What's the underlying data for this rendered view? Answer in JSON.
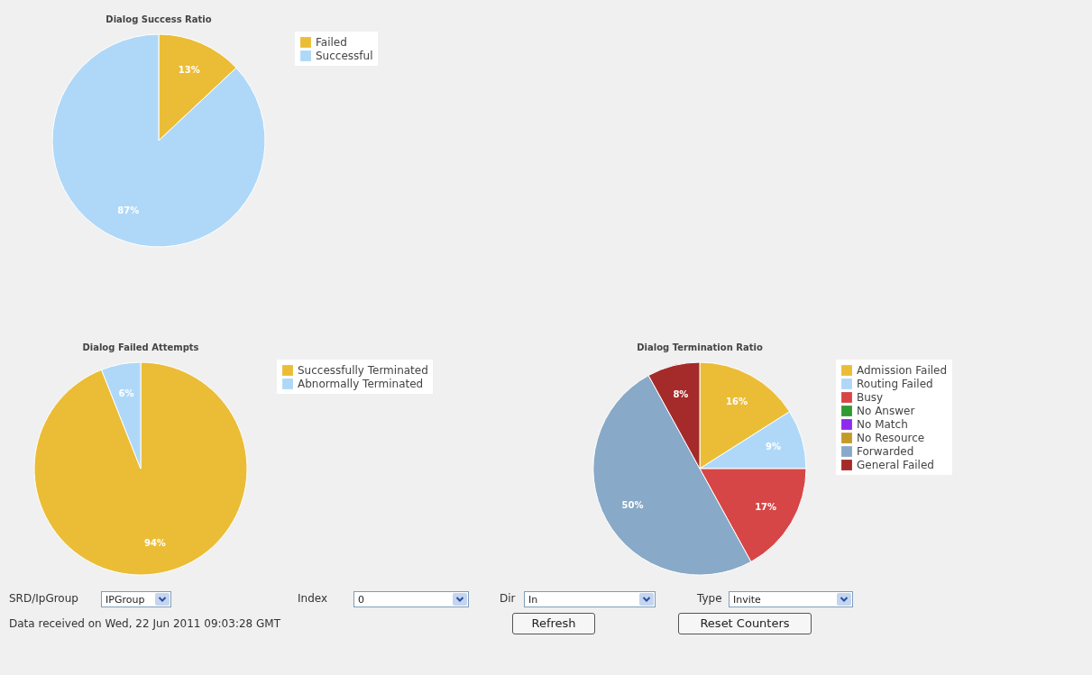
{
  "chart_data": [
    {
      "type": "pie",
      "title": "Dialog Success Ratio",
      "categories": [
        "Failed",
        "Successful"
      ],
      "values": [
        13,
        87
      ],
      "colors": [
        "#ebbd36",
        "#afd8f8"
      ],
      "value_labels": [
        "13%",
        "87%"
      ],
      "legend": "top right"
    },
    {
      "type": "pie",
      "title": "Dialog Failed Attempts",
      "categories": [
        "Successfully Terminated",
        "Abnormally Terminated"
      ],
      "values": [
        94,
        6
      ],
      "colors": [
        "#ebbd36",
        "#afd8f8"
      ],
      "value_labels": [
        "94%",
        "6%"
      ],
      "legend": "top right"
    },
    {
      "type": "pie",
      "title": "Dialog Termination Ratio",
      "categories": [
        "Admission Failed",
        "Routing Failed",
        "Busy",
        "No Answer",
        "No Match",
        "No Resource",
        "Forwarded",
        "General Failed"
      ],
      "values": [
        16,
        9,
        17,
        0,
        0,
        0,
        50,
        8
      ],
      "colors": [
        "#ebbd36",
        "#afd8f8",
        "#d64646",
        "#339933",
        "#8e29f1",
        "#c49a28",
        "#88a9c8",
        "#a52a2a"
      ],
      "value_labels": [
        "16%",
        "9%",
        "17%",
        null,
        null,
        null,
        "50%",
        "8%"
      ],
      "legend": "top right"
    },
    {
      "type": "other",
      "annotations": [
        "SRD/IpGroup",
        "IPGroup",
        "Index",
        "0",
        "Dir",
        "In",
        "Type",
        "Invite",
        "Refresh",
        "Reset Counters",
        "Data received on Wed, 22 Jun 2011 09:03:28 GMT"
      ]
    }
  ]
}
